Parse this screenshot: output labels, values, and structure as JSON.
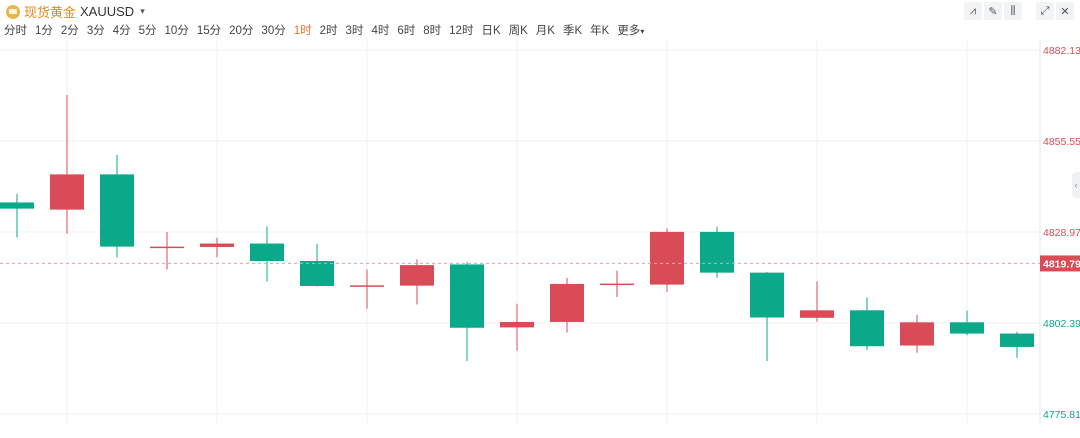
{
  "header": {
    "symbol_name": "现货黄金",
    "symbol_code": "XAUUSD",
    "symbol_caret": "▾",
    "tools": [
      {
        "icon": "indicator-icon",
        "glyph": "⩘"
      },
      {
        "icon": "draw-icon",
        "glyph": "✎"
      },
      {
        "icon": "candle-type-icon",
        "glyph": "⫼"
      },
      {
        "icon": "fullscreen-icon",
        "glyph": "⤢"
      },
      {
        "icon": "close-icon",
        "glyph": "✕"
      }
    ]
  },
  "periods": [
    "分时",
    "1分",
    "2分",
    "3分",
    "4分",
    "5分",
    "10分",
    "15分",
    "20分",
    "30分",
    "1时",
    "2时",
    "3时",
    "4时",
    "6时",
    "8时",
    "12时",
    "日K",
    "周K",
    "月K",
    "季K",
    "年K"
  ],
  "active_period": "1时",
  "more_label": "更多",
  "colors": {
    "up": "#d94c57",
    "down": "#0aa98a",
    "active_tab": "#f06b2b",
    "grid": "#f0f0f0",
    "current_price_line": "#e8a0a6"
  },
  "chart_data": {
    "type": "candlestick",
    "price_axis": {
      "min": 4775.81,
      "max": 4882.13,
      "ticks": [
        {
          "label": "4882.13",
          "value": 4882.13,
          "color": "#d94c57"
        },
        {
          "label": "4855.55",
          "value": 4855.55,
          "color": "#d94c57"
        },
        {
          "label": "4828.97",
          "value": 4828.97,
          "color": "#d94c57"
        },
        {
          "label": "4802.39",
          "value": 4802.39,
          "color": "#0aa98a"
        },
        {
          "label": "4775.81",
          "value": 4775.81,
          "color": "#0aa98a"
        }
      ]
    },
    "current_price": {
      "value": 4819.79,
      "label": "4819.79"
    },
    "grid": true,
    "candles": [
      {
        "open": 4837.6,
        "close": 4835.8,
        "high": 4840.1,
        "low": 4827.4
      },
      {
        "open": 4835.5,
        "close": 4845.8,
        "high": 4869.0,
        "low": 4828.5
      },
      {
        "open": 4845.8,
        "close": 4824.7,
        "high": 4851.5,
        "low": 4821.5
      },
      {
        "open": 4824.7,
        "close": 4824.7,
        "high": 4829.0,
        "low": 4818.0
      },
      {
        "open": 4824.6,
        "close": 4825.6,
        "high": 4827.3,
        "low": 4821.6
      },
      {
        "open": 4825.6,
        "close": 4820.5,
        "high": 4830.6,
        "low": 4814.5
      },
      {
        "open": 4820.5,
        "close": 4813.2,
        "high": 4825.5,
        "low": 4813.0
      },
      {
        "open": 4813.4,
        "close": 4813.4,
        "high": 4818.0,
        "low": 4806.5
      },
      {
        "open": 4813.3,
        "close": 4819.3,
        "high": 4821.0,
        "low": 4807.8
      },
      {
        "open": 4819.5,
        "close": 4801.0,
        "high": 4820.2,
        "low": 4791.3
      },
      {
        "open": 4801.1,
        "close": 4802.7,
        "high": 4808.0,
        "low": 4794.3
      },
      {
        "open": 4802.7,
        "close": 4813.8,
        "high": 4815.6,
        "low": 4799.6
      },
      {
        "open": 4813.9,
        "close": 4813.9,
        "high": 4817.7,
        "low": 4810.0
      },
      {
        "open": 4813.6,
        "close": 4829.0,
        "high": 4830.0,
        "low": 4811.5
      },
      {
        "open": 4829.0,
        "close": 4817.1,
        "high": 4830.5,
        "low": 4815.6
      },
      {
        "open": 4817.1,
        "close": 4804.0,
        "high": 4817.3,
        "low": 4791.3
      },
      {
        "open": 4803.9,
        "close": 4806.1,
        "high": 4814.6,
        "low": 4802.8
      },
      {
        "open": 4806.1,
        "close": 4795.6,
        "high": 4809.8,
        "low": 4794.5
      },
      {
        "open": 4795.8,
        "close": 4802.6,
        "high": 4804.8,
        "low": 4793.7
      },
      {
        "open": 4802.6,
        "close": 4799.3,
        "high": 4806.0,
        "low": 4798.8
      },
      {
        "open": 4799.3,
        "close": 4795.4,
        "high": 4799.8,
        "low": 4792.2
      }
    ]
  }
}
